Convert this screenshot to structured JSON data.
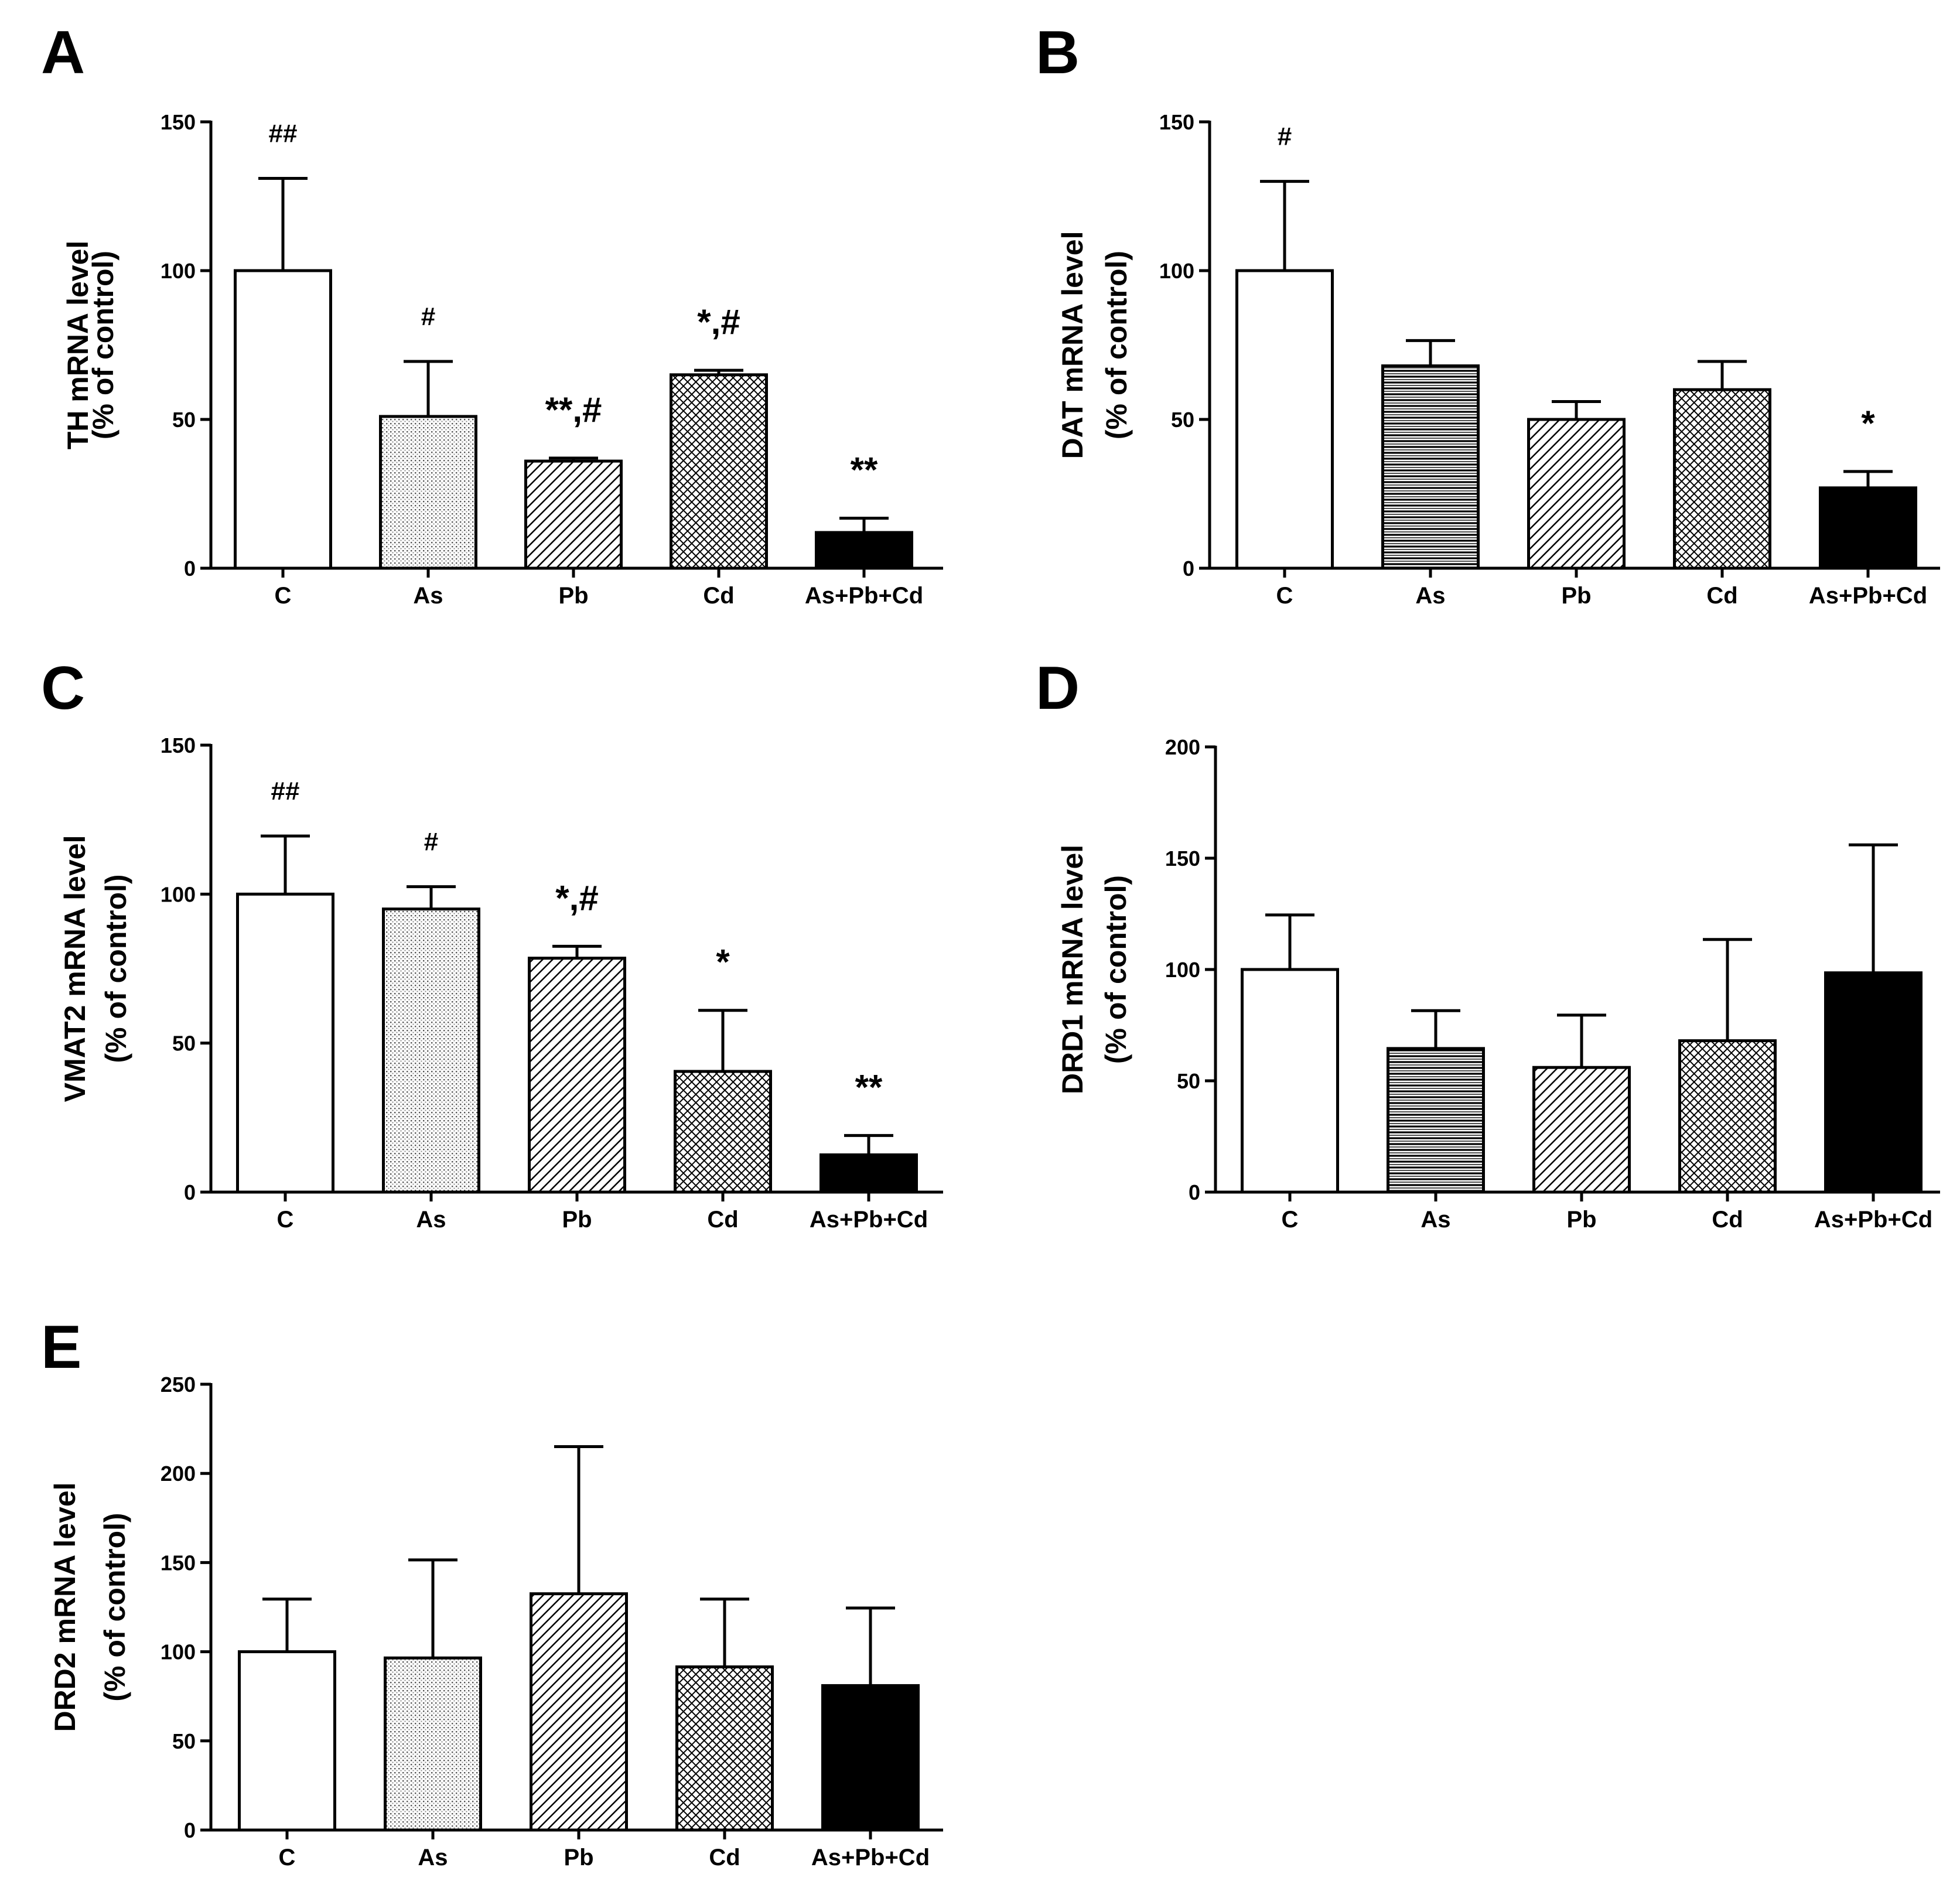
{
  "chart_data": [
    {
      "panel": "A",
      "type": "bar",
      "categories": [
        "C",
        "As",
        "Pb",
        "Cd",
        "As+Pb+Cd"
      ],
      "values": [
        100,
        51,
        36,
        65,
        12
      ],
      "errors": [
        31,
        18.5,
        1,
        1.5,
        4.8
      ],
      "patterns": [
        "white",
        "dots",
        "diag",
        "cross",
        "black"
      ],
      "annotations": [
        "##",
        "#",
        "**,#",
        "*,#",
        "**"
      ],
      "ylabel": [
        "TH mRNA level",
        "(% of control)"
      ],
      "ylim": [
        0,
        150
      ],
      "yticks": [
        0,
        50,
        100,
        150
      ]
    },
    {
      "panel": "B",
      "type": "bar",
      "categories": [
        "C",
        "As",
        "Pb",
        "Cd",
        "As+Pb+Cd"
      ],
      "values": [
        100,
        68,
        50,
        60,
        27
      ],
      "errors": [
        30,
        8.5,
        6,
        9.5,
        5.5
      ],
      "patterns": [
        "white",
        "hstripe",
        "diag",
        "cross",
        "black"
      ],
      "annotations": [
        "#",
        "",
        "",
        "",
        "*"
      ],
      "ylabel": [
        "DAT mRNA level",
        "(% of control)"
      ],
      "ylim": [
        0,
        150
      ],
      "yticks": [
        0,
        50,
        100,
        150
      ]
    },
    {
      "panel": "C",
      "type": "bar",
      "categories": [
        "C",
        "As",
        "Pb",
        "Cd",
        "As+Pb+Cd"
      ],
      "values": [
        100,
        95,
        78.5,
        40.5,
        12.5
      ],
      "errors": [
        19.5,
        7.5,
        4,
        20.5,
        6.5
      ],
      "patterns": [
        "white",
        "dots",
        "diag",
        "cross",
        "black"
      ],
      "annotations": [
        "##",
        "#",
        "*,#",
        "*",
        "**"
      ],
      "ylabel": [
        "VMAT2 mRNA level",
        "(% of control)"
      ],
      "ylim": [
        0,
        150
      ],
      "yticks": [
        0,
        50,
        100,
        150
      ]
    },
    {
      "panel": "D",
      "type": "bar",
      "categories": [
        "C",
        "As",
        "Pb",
        "Cd",
        "As+Pb+Cd"
      ],
      "values": [
        100,
        64.5,
        56,
        68,
        98.5
      ],
      "errors": [
        24.5,
        17,
        23.5,
        45.5,
        57.5
      ],
      "patterns": [
        "white",
        "hstripe",
        "diag",
        "cross",
        "black"
      ],
      "annotations": [
        "",
        "",
        "",
        "",
        ""
      ],
      "ylabel": [
        "DRD1 mRNA level",
        "(% of control)"
      ],
      "ylim": [
        0,
        200
      ],
      "yticks": [
        0,
        50,
        100,
        150,
        200
      ]
    },
    {
      "panel": "E",
      "type": "bar",
      "categories": [
        "C",
        "As",
        "Pb",
        "Cd",
        "As+Pb+Cd"
      ],
      "values": [
        100,
        96.5,
        132.5,
        91.5,
        81
      ],
      "errors": [
        29.5,
        55,
        82.5,
        38,
        43.5
      ],
      "patterns": [
        "white",
        "dots",
        "diag",
        "cross",
        "black"
      ],
      "annotations": [
        "",
        "",
        "",
        "",
        ""
      ],
      "ylabel": [
        "DRD2 mRNA level",
        "(% of control)"
      ],
      "ylim": [
        0,
        250
      ],
      "yticks": [
        0,
        50,
        100,
        150,
        200,
        250
      ]
    }
  ]
}
